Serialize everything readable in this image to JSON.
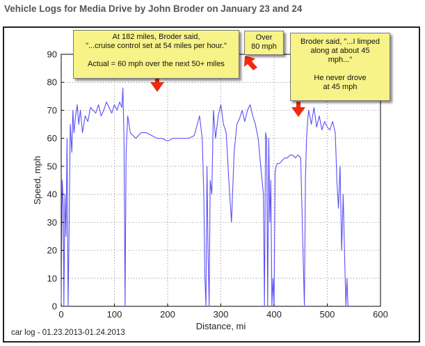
{
  "page": {
    "title": "Vehicle Logs for Media Drive by John Broder on January 23 and 24",
    "footer": "car log - 01.23.2013-01.24.2013"
  },
  "annotations": {
    "a1": {
      "text": "At 182 miles, Broder said,\n\"...cruise control set at 54 miles per hour.\"\n\nActual = 60 mph over the next 50+ miles"
    },
    "a2": {
      "text": "Over\n80 mph"
    },
    "a3": {
      "text": "Broder said, \"...I limped\nalong at about 45\nmph...\"\n\nHe never drove\nat 45 mph"
    }
  },
  "colors": {
    "line": "#5b4ef5",
    "arrow": "#ee2a10",
    "callout_bg": "#f7f388"
  },
  "chart_data": {
    "type": "line",
    "title": "",
    "xlabel": "Distance, mi",
    "ylabel": "Speed, mph",
    "xlim": [
      0,
      600
    ],
    "ylim": [
      0,
      90
    ],
    "xticks": [
      0,
      100,
      200,
      300,
      400,
      500,
      600
    ],
    "yticks": [
      0,
      10,
      20,
      30,
      40,
      50,
      60,
      70,
      80,
      90
    ],
    "grid": true,
    "series": [
      {
        "x": [
          0,
          2,
          4,
          5,
          7,
          9,
          11,
          13,
          15,
          17,
          20,
          22,
          24,
          27,
          30,
          33,
          36,
          40,
          45,
          50,
          55,
          60,
          65,
          70,
          75,
          80,
          85,
          90,
          95,
          100,
          105,
          110,
          114,
          116,
          118,
          120,
          122,
          125,
          130,
          140,
          150,
          160,
          170,
          180,
          190,
          200,
          210,
          220,
          230,
          240,
          250,
          260,
          265,
          268,
          270,
          272,
          274,
          276,
          278,
          280,
          283,
          286,
          290,
          295,
          300,
          305,
          310,
          315,
          320,
          325,
          330,
          335,
          340,
          345,
          350,
          355,
          360,
          365,
          370,
          375,
          380,
          382,
          384,
          386,
          388,
          390,
          392,
          394,
          396,
          398,
          400,
          402,
          404,
          406,
          410,
          415,
          420,
          425,
          430,
          435,
          440,
          445,
          450,
          455,
          457,
          459,
          461,
          463,
          465,
          470,
          475,
          480,
          485,
          490,
          495,
          500,
          505,
          510,
          515,
          518,
          521,
          524,
          527,
          530,
          533,
          535,
          537,
          539
        ],
        "values": [
          0,
          45,
          35,
          0,
          40,
          25,
          60,
          0,
          30,
          65,
          55,
          70,
          62,
          68,
          72,
          65,
          70,
          62,
          68,
          66,
          71,
          70,
          69,
          72,
          68,
          70,
          73,
          71,
          69,
          72,
          70,
          73,
          71,
          78,
          60,
          0,
          55,
          68,
          62,
          60,
          62,
          62,
          61,
          60,
          60,
          59,
          60,
          60,
          60,
          60,
          61,
          68,
          60,
          40,
          10,
          0,
          50,
          20,
          0,
          45,
          40,
          70,
          60,
          68,
          72,
          65,
          62,
          45,
          30,
          55,
          65,
          67,
          70,
          66,
          70,
          72,
          68,
          65,
          60,
          50,
          40,
          0,
          62,
          60,
          0,
          60,
          30,
          45,
          0,
          10,
          0,
          48,
          50,
          51,
          51,
          52,
          53,
          53,
          54,
          54,
          53,
          54,
          53,
          15,
          0,
          45,
          60,
          66,
          70,
          65,
          71,
          64,
          68,
          63,
          66,
          64,
          63,
          66,
          62,
          45,
          35,
          50,
          20,
          40,
          15,
          0,
          10,
          0
        ]
      }
    ]
  }
}
